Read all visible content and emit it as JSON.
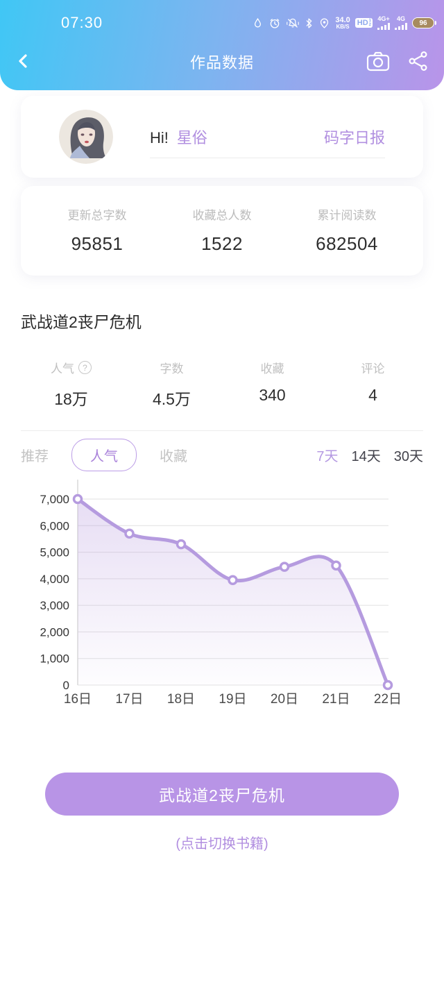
{
  "status_bar": {
    "time": "07:30",
    "net_speed_value": "34.0",
    "net_speed_unit": "KB/S",
    "hd_label": "HD",
    "sim1_net": "4G+",
    "sim2_net": "4G",
    "battery_percent": "96"
  },
  "header": {
    "title": "作品数据"
  },
  "user_card": {
    "greeting": "Hi!",
    "username": "星俗",
    "report_link": "码字日报"
  },
  "summary": {
    "items": [
      {
        "label": "更新总字数",
        "value": "95851"
      },
      {
        "label": "收藏总人数",
        "value": "1522"
      },
      {
        "label": "累计阅读数",
        "value": "682504"
      }
    ]
  },
  "book": {
    "title": "武战道2丧尸危机",
    "stats": [
      {
        "label": "人气",
        "value": "18万"
      },
      {
        "label": "字数",
        "value": "4.5万"
      },
      {
        "label": "收藏",
        "value": "340"
      },
      {
        "label": "评论",
        "value": "4"
      }
    ]
  },
  "tabs": {
    "items": [
      "推荐",
      "人气",
      "收藏"
    ],
    "active": "人气",
    "ranges": [
      "7天",
      "14天",
      "30天"
    ],
    "active_range": "7天"
  },
  "chart_data": {
    "type": "area",
    "title": "",
    "xlabel": "",
    "ylabel": "",
    "x": [
      "16日",
      "17日",
      "18日",
      "19日",
      "20日",
      "21日",
      "22日"
    ],
    "series": [
      {
        "name": "人气",
        "values": [
          7000,
          5700,
          5300,
          3950,
          4450,
          4500,
          0
        ]
      }
    ],
    "ylim": [
      0,
      7000
    ],
    "ytick_step": 1000,
    "grid": true,
    "legend": false,
    "line_color": "#b59bdf",
    "point_fill": "#ffffff",
    "fill_color": "#b79ade",
    "grid_color": "#e1e1e1",
    "axis_color": "#d9d9d9",
    "ytick_color": "#333333",
    "xtick_color": "#4a4a4a"
  },
  "footer": {
    "button_label": "武战道2丧尸危机",
    "hint": "(点击切换书籍)"
  },
  "colors": {
    "header_gradient_start": "#40c7f5",
    "header_gradient_end": "#b994e9",
    "accent_purple": "#b894e6",
    "link_purple": "#b18fe0"
  }
}
